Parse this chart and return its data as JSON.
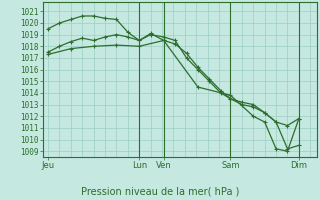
{
  "background_color": "#c5e8e0",
  "grid_color": "#9dcfc4",
  "line_color": "#2d6e2d",
  "xlabel": "Pression niveau de la mer( hPa )",
  "ylim": [
    1008.5,
    1021.8
  ],
  "yticks": [
    1009,
    1010,
    1011,
    1012,
    1013,
    1014,
    1015,
    1016,
    1017,
    1018,
    1019,
    1020,
    1021
  ],
  "xtick_labels": [
    "Jeu",
    "Lun",
    "Ven",
    "Sam",
    "Dim"
  ],
  "xtick_pos": [
    0,
    56,
    71,
    112,
    154
  ],
  "vlines_pos": [
    56,
    71,
    112,
    154
  ],
  "xlim": [
    -3,
    165
  ],
  "line1_x": [
    0,
    7,
    14,
    21,
    28,
    35,
    42,
    49,
    56,
    63,
    71,
    78,
    85,
    92,
    99,
    106,
    112,
    119,
    126,
    133,
    140,
    147,
    154
  ],
  "line1_y": [
    1019.5,
    1020.0,
    1020.3,
    1020.6,
    1020.6,
    1020.4,
    1020.3,
    1019.2,
    1018.5,
    1019.1,
    1018.5,
    1018.2,
    1017.4,
    1016.2,
    1015.2,
    1014.2,
    1013.5,
    1013.2,
    1013.0,
    1012.3,
    1011.5,
    1011.2,
    1011.8
  ],
  "line2_x": [
    0,
    7,
    14,
    21,
    28,
    35,
    42,
    49,
    56,
    63,
    71,
    78,
    85,
    92,
    99,
    106,
    112,
    119,
    126,
    133,
    140,
    147,
    154
  ],
  "line2_y": [
    1017.5,
    1018.0,
    1018.4,
    1018.7,
    1018.5,
    1018.8,
    1019.0,
    1018.8,
    1018.5,
    1019.0,
    1018.8,
    1018.5,
    1017.0,
    1016.0,
    1015.0,
    1014.0,
    1013.5,
    1013.0,
    1012.8,
    1012.3,
    1011.5,
    1009.2,
    1009.5
  ],
  "line3_x": [
    0,
    14,
    28,
    42,
    56,
    71,
    92,
    112,
    126,
    133,
    140,
    147,
    154
  ],
  "line3_y": [
    1017.3,
    1017.8,
    1018.0,
    1018.1,
    1018.0,
    1018.5,
    1014.5,
    1013.8,
    1012.0,
    1011.5,
    1009.2,
    1009.0,
    1011.8
  ]
}
